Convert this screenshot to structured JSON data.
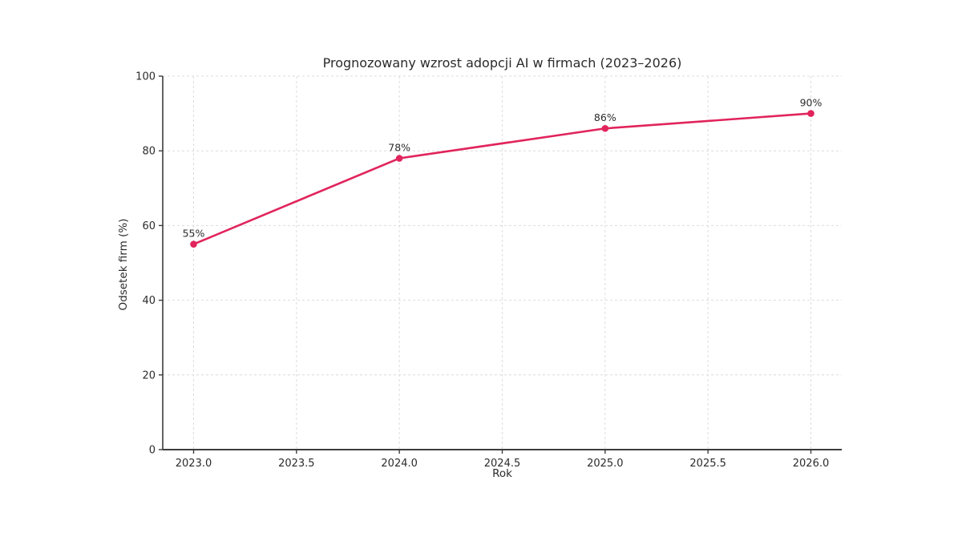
{
  "chart_data": {
    "type": "line",
    "title": "Prognozowany wzrost adopcji AI w firmach (2023–2026)",
    "xlabel": "Rok",
    "ylabel": "Odsetek firm (%)",
    "x": [
      2023,
      2024,
      2025,
      2026
    ],
    "values": [
      55,
      78,
      86,
      90
    ],
    "point_labels": [
      "55%",
      "78%",
      "86%",
      "90%"
    ],
    "xlim": [
      2022.85,
      2026.15
    ],
    "ylim": [
      0,
      100
    ],
    "xticks": [
      2023.0,
      2023.5,
      2024.0,
      2024.5,
      2025.0,
      2025.5,
      2026.0
    ],
    "xtick_labels": [
      "2023.0",
      "2023.5",
      "2024.0",
      "2024.5",
      "2025.0",
      "2025.5",
      "2026.0"
    ],
    "yticks": [
      0,
      20,
      40,
      60,
      80,
      100
    ],
    "ytick_labels": [
      "0",
      "20",
      "40",
      "60",
      "80",
      "100"
    ],
    "grid": true,
    "grid_style": "dashed",
    "legend": "none",
    "line_color": "#e1245c",
    "marker_color": "#e1245c",
    "grid_color": "#dcdcdc",
    "spine_color": "#3d3d3d",
    "text_color": "#2b2b2b",
    "background_color": "#ffffff"
  }
}
